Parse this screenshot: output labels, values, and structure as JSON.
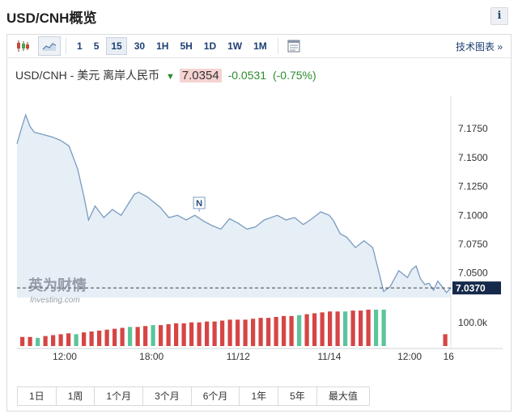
{
  "header": {
    "title": "USD/CNH概览",
    "info_label": "i"
  },
  "toolbar": {
    "timeframes": [
      "1",
      "5",
      "15",
      "30",
      "1H",
      "5H",
      "1D",
      "1W",
      "1M"
    ],
    "active_timeframe": "15",
    "tech_link": "技术图表 »"
  },
  "quote": {
    "symbol": "USD/CNH - 美元 离岸人民币",
    "price": "7.0354",
    "change": "-0.0531",
    "change_pct": "(-0.75%)"
  },
  "watermark": {
    "brand": "英为财情",
    "site": "Investing.com"
  },
  "colors": {
    "line": "#7a9cc0",
    "area": "#e6eef6",
    "vol_up": "#d64545",
    "vol_down": "#5cc49a",
    "price_box": "#15294a",
    "accent": "#1d3f73"
  },
  "ranges": [
    "1日",
    "1周",
    "1个月",
    "3个月",
    "6个月",
    "1年",
    "5年",
    "最大值"
  ],
  "chart_data": {
    "type": "area",
    "title": "USD/CNH",
    "y_ticks": [
      7.175,
      7.15,
      7.125,
      7.1,
      7.075,
      7.05
    ],
    "y_tick_labels": [
      "7.1750",
      "7.1500",
      "7.1250",
      "7.1000",
      "7.0750",
      "7.0500"
    ],
    "ylim": [
      7.0287,
      7.2004
    ],
    "last_value": 7.037,
    "last_value_label": "7.0370",
    "x_ticks": [
      0.11,
      0.31,
      0.51,
      0.72,
      0.905,
      0.995
    ],
    "x_tick_labels": [
      "12:00",
      "18:00",
      "11/12",
      "11/14",
      "12:00",
      "16"
    ],
    "annotation": {
      "label": "N",
      "x": 0.42,
      "y": 7.103
    },
    "series": [
      {
        "x": [
          0,
          0.01,
          0.02,
          0.03,
          0.04,
          0.06,
          0.08,
          0.1,
          0.12,
          0.14,
          0.155,
          0.165,
          0.18,
          0.2,
          0.22,
          0.24,
          0.26,
          0.27,
          0.28,
          0.3,
          0.31,
          0.33,
          0.35,
          0.37,
          0.39,
          0.41,
          0.43,
          0.45,
          0.47,
          0.49,
          0.51,
          0.53,
          0.55,
          0.57,
          0.6,
          0.62,
          0.64,
          0.66,
          0.68,
          0.7,
          0.72,
          0.73,
          0.745,
          0.76,
          0.78,
          0.8,
          0.82,
          0.83,
          0.845,
          0.86,
          0.88,
          0.9,
          0.91,
          0.92,
          0.93,
          0.94,
          0.95,
          0.96,
          0.97,
          0.98,
          0.99,
          1.0
        ],
        "y": [
          7.162,
          7.175,
          7.187,
          7.177,
          7.172,
          7.17,
          7.168,
          7.165,
          7.16,
          7.14,
          7.115,
          7.096,
          7.108,
          7.098,
          7.105,
          7.1,
          7.112,
          7.118,
          7.12,
          7.116,
          7.113,
          7.107,
          7.098,
          7.1,
          7.096,
          7.1,
          7.095,
          7.091,
          7.088,
          7.097,
          7.093,
          7.088,
          7.09,
          7.096,
          7.1,
          7.096,
          7.098,
          7.092,
          7.097,
          7.103,
          7.1,
          7.095,
          7.084,
          7.081,
          7.072,
          7.078,
          7.072,
          7.057,
          7.034,
          7.038,
          7.052,
          7.046,
          7.053,
          7.056,
          7.045,
          7.04,
          7.041,
          7.035,
          7.043,
          7.038,
          7.033,
          7.037
        ]
      }
    ],
    "volume": {
      "axis_label": "100.0k",
      "up": [
        1,
        1,
        0,
        1,
        1,
        1,
        1,
        0,
        1,
        1,
        1,
        1,
        1,
        1,
        0,
        1,
        1,
        0,
        1,
        1,
        1,
        1,
        1,
        1,
        1,
        1,
        1,
        1,
        1,
        1,
        1,
        1,
        1,
        1,
        1,
        1,
        0,
        1,
        1,
        1,
        1,
        1,
        0,
        1,
        1,
        1,
        0,
        0,
        0,
        0,
        0,
        0,
        0,
        0,
        0,
        1
      ],
      "values": [
        10,
        10,
        9,
        11,
        12,
        13,
        14,
        13,
        15,
        16,
        17,
        18,
        19,
        20,
        21,
        21,
        22,
        23,
        23,
        24,
        25,
        25,
        26,
        26,
        27,
        27,
        28,
        29,
        29,
        29,
        30,
        31,
        31,
        32,
        33,
        33,
        34,
        35,
        36,
        37,
        38,
        38,
        38,
        39,
        39,
        40,
        40,
        40,
        0,
        0,
        0,
        0,
        0,
        0,
        0,
        13
      ]
    }
  }
}
